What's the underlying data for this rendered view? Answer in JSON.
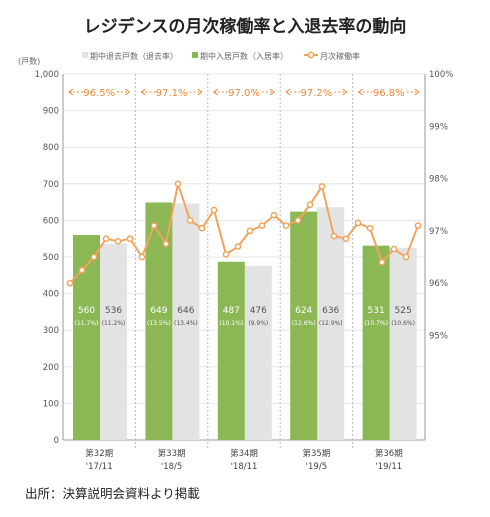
{
  "title": "レジデンスの月次稼働率と入退去率の動向",
  "source": "出所：決算説明会資料より掲載",
  "colors": {
    "move_out_bar": "#e3e3e3",
    "move_in_bar": "#8cb755",
    "occupancy_line": "#f0a45d",
    "avg_label": "#e8893a",
    "grid": "#e6e6e6",
    "axis": "#999999"
  },
  "chart_data": {
    "type": "bar+line",
    "y_left_unit": "(戸数)",
    "ylim_left": [
      0,
      1000
    ],
    "yticks_left": [
      "0",
      "100",
      "200",
      "300",
      "400",
      "500",
      "600",
      "700",
      "800",
      "900",
      "1,000"
    ],
    "ylim_right": [
      0.93,
      1.0
    ],
    "yticks_right": [
      "95%",
      "96%",
      "97%",
      "98%",
      "99%",
      "100%"
    ],
    "legend_position": "top",
    "grid": true,
    "periods": [
      {
        "name": "第32期",
        "date": "'17/11",
        "move_in": 560,
        "move_in_rate": "(11.7%)",
        "move_out": 536,
        "move_out_rate": "(11.2%)",
        "avg": "96.5%"
      },
      {
        "name": "第33期",
        "date": "'18/5",
        "move_in": 649,
        "move_in_rate": "(13.5%)",
        "move_out": 646,
        "move_out_rate": "(13.4%)",
        "avg": "97.1%"
      },
      {
        "name": "第34期",
        "date": "'18/11",
        "move_in": 487,
        "move_in_rate": "(10.1%)",
        "move_out": 476,
        "move_out_rate": "(9.9%)",
        "avg": "97.0%"
      },
      {
        "name": "第35期",
        "date": "'19/5",
        "move_in": 624,
        "move_in_rate": "(12.6%)",
        "move_out": 636,
        "move_out_rate": "(12.9%)",
        "avg": "97.2%"
      },
      {
        "name": "第36期",
        "date": "'19/11",
        "move_in": 531,
        "move_in_rate": "(10.7%)",
        "move_out": 525,
        "move_out_rate": "(10.6%)",
        "avg": "96.8%"
      }
    ],
    "series": [
      {
        "name": "期中退去戸数（退去率）",
        "key": "move_out",
        "type": "bar"
      },
      {
        "name": "期中入居戸数（入居率）",
        "key": "move_in",
        "type": "bar"
      },
      {
        "name": "月次稼働率",
        "key": "occupancy",
        "type": "line",
        "values": [
          0.96,
          0.9625,
          0.965,
          0.9685,
          0.968,
          0.9685,
          0.965,
          0.971,
          0.9675,
          0.979,
          0.972,
          0.9705,
          0.974,
          0.9655,
          0.967,
          0.97,
          0.971,
          0.973,
          0.971,
          0.972,
          0.975,
          0.9785,
          0.969,
          0.9685,
          0.9715,
          0.9705,
          0.964,
          0.9665,
          0.965,
          0.971
        ]
      }
    ]
  }
}
